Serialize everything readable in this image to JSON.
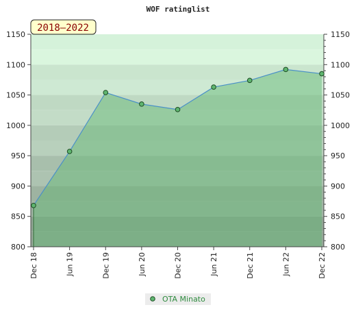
{
  "chart_data": {
    "type": "area",
    "title": "WOF ratinglist",
    "badge": "2018–2022",
    "x": [
      "Dec 18",
      "Jun 19",
      "Dec 19",
      "Jun 20",
      "Dec 20",
      "Jun 21",
      "Dec 21",
      "Jun 22",
      "Dec 22"
    ],
    "series": [
      {
        "name": "OTA Minato",
        "values": [
          868,
          957,
          1054,
          1035,
          1026,
          1063,
          1074,
          1092,
          1085
        ]
      }
    ],
    "ylim": [
      800,
      1150
    ],
    "yticks": [
      800,
      850,
      900,
      950,
      1000,
      1050,
      1100,
      1150
    ],
    "y_axis_both_sides": true,
    "grid": "horizontal bands",
    "legend_placement": "bottom-center",
    "colors": {
      "line": "#4a90c8",
      "fill": "#5fb670",
      "marker": "#5fb670",
      "marker_stroke": "#1e4d24",
      "badge_bg": "#ffffcc",
      "legend_text": "#2e8b3e"
    }
  }
}
